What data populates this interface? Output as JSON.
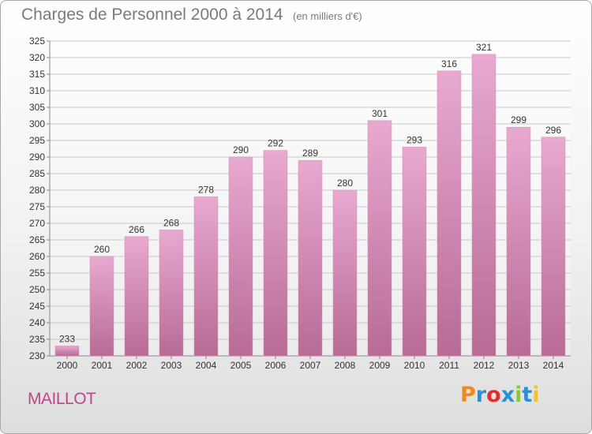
{
  "header": {
    "title": "Charges de Personnel 2000 à 2014",
    "subtitle": "(en milliers d'€)"
  },
  "footer": {
    "commune": "MAILLOT",
    "logo_text": "Proxiti",
    "logo_colors": [
      "#f08a1c",
      "#2b8fd6",
      "#e0302e",
      "#2b8fd6",
      "#8cc63f",
      "#2b8fd6",
      "#f2c12e"
    ]
  },
  "colors": {
    "bar_top": "#e8a9d0",
    "bar_bottom": "#b76b95",
    "grid": "#c8c8c8",
    "text": "#333333"
  },
  "chart_data": {
    "type": "bar",
    "title": "Charges de Personnel 2000 à 2014",
    "categories": [
      "2000",
      "2001",
      "2002",
      "2003",
      "2004",
      "2005",
      "2006",
      "2007",
      "2008",
      "2009",
      "2010",
      "2011",
      "2012",
      "2013",
      "2014"
    ],
    "values": [
      233,
      260,
      266,
      268,
      278,
      290,
      292,
      289,
      280,
      301,
      293,
      316,
      321,
      299,
      296
    ],
    "ylim": [
      230,
      325
    ],
    "yticks": [
      230,
      235,
      240,
      245,
      250,
      255,
      260,
      265,
      270,
      275,
      280,
      285,
      290,
      295,
      300,
      305,
      310,
      315,
      320,
      325
    ],
    "grid": true,
    "data_labels": true
  }
}
